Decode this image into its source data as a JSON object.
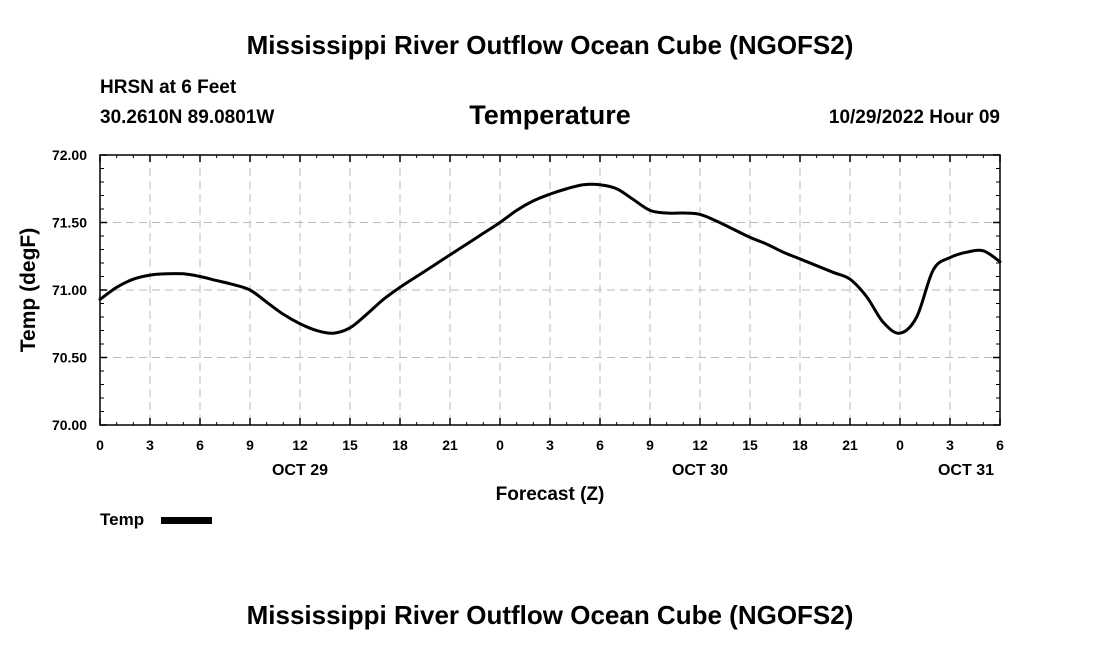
{
  "header": {
    "main_title": "Mississippi River Outflow Ocean Cube (NGOFS2)",
    "station": "HRSN at 6 Feet",
    "coords": "30.2610N  89.0801W",
    "chart_title": "Temperature",
    "datetime": "10/29/2022 Hour 09"
  },
  "footer": {
    "main_title": "Mississippi River Outflow Ocean Cube (NGOFS2)"
  },
  "legend": {
    "label": "Temp"
  },
  "chart_data": {
    "type": "line",
    "title": "Temperature",
    "xlabel": "Forecast (Z)",
    "ylabel": "Temp (degF)",
    "xlim": [
      0,
      54
    ],
    "ylim": [
      70.0,
      72.0
    ],
    "grid": true,
    "line_color": "#000000",
    "y_ticks": [
      {
        "value": 70.0,
        "label": "70.00"
      },
      {
        "value": 70.5,
        "label": "70.50"
      },
      {
        "value": 71.0,
        "label": "71.00"
      },
      {
        "value": 71.5,
        "label": "71.50"
      },
      {
        "value": 72.0,
        "label": "72.00"
      }
    ],
    "x_ticks": [
      {
        "value": 0,
        "label": "0"
      },
      {
        "value": 3,
        "label": "3"
      },
      {
        "value": 6,
        "label": "6"
      },
      {
        "value": 9,
        "label": "9"
      },
      {
        "value": 12,
        "label": "12"
      },
      {
        "value": 15,
        "label": "15"
      },
      {
        "value": 18,
        "label": "18"
      },
      {
        "value": 21,
        "label": "21"
      },
      {
        "value": 24,
        "label": "0"
      },
      {
        "value": 27,
        "label": "3"
      },
      {
        "value": 30,
        "label": "6"
      },
      {
        "value": 33,
        "label": "9"
      },
      {
        "value": 36,
        "label": "12"
      },
      {
        "value": 39,
        "label": "15"
      },
      {
        "value": 42,
        "label": "18"
      },
      {
        "value": 45,
        "label": "21"
      },
      {
        "value": 48,
        "label": "0"
      },
      {
        "value": 51,
        "label": "3"
      },
      {
        "value": 54,
        "label": "6"
      }
    ],
    "date_labels": [
      {
        "value": 12,
        "label": "OCT 29"
      },
      {
        "value": 36,
        "label": "OCT 30"
      },
      {
        "value": 60,
        "label": "OCT 31"
      }
    ],
    "series": [
      {
        "name": "Temp",
        "x": [
          0,
          1,
          2,
          3,
          4,
          5,
          6,
          7,
          8,
          9,
          10,
          11,
          12,
          13,
          14,
          15,
          16,
          17,
          18,
          19,
          20,
          21,
          22,
          23,
          24,
          25,
          26,
          27,
          28,
          29,
          30,
          31,
          32,
          33,
          34,
          35,
          36,
          37,
          38,
          39,
          40,
          41,
          42,
          43,
          44,
          45,
          46,
          47,
          48,
          49,
          50,
          51,
          52,
          53,
          54
        ],
        "values": [
          70.93,
          71.02,
          71.08,
          71.11,
          71.12,
          71.12,
          71.1,
          71.07,
          71.04,
          71.0,
          70.91,
          70.82,
          70.75,
          70.7,
          70.68,
          70.72,
          70.82,
          70.93,
          71.02,
          71.1,
          71.18,
          71.26,
          71.34,
          71.42,
          71.5,
          71.59,
          71.66,
          71.71,
          71.75,
          71.78,
          71.78,
          71.75,
          71.67,
          71.59,
          71.57,
          71.57,
          71.56,
          71.51,
          71.45,
          71.39,
          71.34,
          71.28,
          71.23,
          71.18,
          71.13,
          71.08,
          70.95,
          70.76,
          70.68,
          70.8,
          71.15,
          71.24,
          71.28,
          71.29,
          71.21
        ]
      }
    ]
  }
}
